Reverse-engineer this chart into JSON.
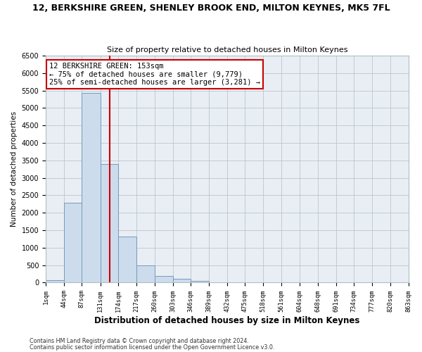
{
  "title1": "12, BERKSHIRE GREEN, SHENLEY BROOK END, MILTON KEYNES, MK5 7FL",
  "title2": "Size of property relative to detached houses in Milton Keynes",
  "xlabel": "Distribution of detached houses by size in Milton Keynes",
  "ylabel": "Number of detached properties",
  "bin_edges": [
    1,
    44,
    87,
    131,
    174,
    217,
    260,
    303,
    346,
    389,
    432,
    475,
    518,
    561,
    604,
    648,
    691,
    734,
    777,
    820,
    863
  ],
  "bar_heights": [
    75,
    2280,
    5430,
    3390,
    1310,
    490,
    185,
    100,
    55,
    0,
    0,
    0,
    0,
    0,
    0,
    0,
    0,
    0,
    0,
    0
  ],
  "bar_color": "#ccdcec",
  "bar_edge_color": "#7799bb",
  "vline_x": 153,
  "vline_color": "#cc0000",
  "ylim": [
    0,
    6500
  ],
  "yticks": [
    0,
    500,
    1000,
    1500,
    2000,
    2500,
    3000,
    3500,
    4000,
    4500,
    5000,
    5500,
    6000,
    6500
  ],
  "xtick_labels": [
    "1sqm",
    "44sqm",
    "87sqm",
    "131sqm",
    "174sqm",
    "217sqm",
    "260sqm",
    "303sqm",
    "346sqm",
    "389sqm",
    "432sqm",
    "475sqm",
    "518sqm",
    "561sqm",
    "604sqm",
    "648sqm",
    "691sqm",
    "734sqm",
    "777sqm",
    "820sqm",
    "863sqm"
  ],
  "annotation_title": "12 BERKSHIRE GREEN: 153sqm",
  "annotation_line1": "← 75% of detached houses are smaller (9,779)",
  "annotation_line2": "25% of semi-detached houses are larger (3,281) →",
  "annotation_box_color": "#ffffff",
  "annotation_box_edge": "#cc0000",
  "footer1": "Contains HM Land Registry data © Crown copyright and database right 2024.",
  "footer2": "Contains public sector information licensed under the Open Government Licence v3.0.",
  "bg_color": "#ffffff",
  "plot_bg_color": "#e8eef4",
  "grid_color": "#b0bec8",
  "title_fontsize": 9,
  "subtitle_fontsize": 8
}
